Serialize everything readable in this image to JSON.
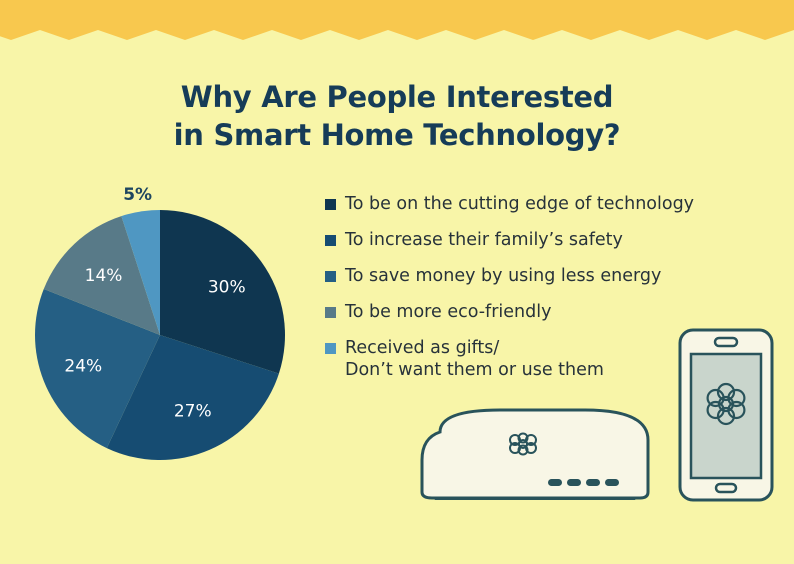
{
  "title": {
    "line1": "Why Are People Interested",
    "line2": "in Smart Home Technology?"
  },
  "colors": {
    "background": "#f8f5a8",
    "top_band": "#f8c84e",
    "title": "#163c58",
    "device_outline": "#29535b",
    "device_fill": "#f8f6e6"
  },
  "chart_data": {
    "type": "pie",
    "start_angle_deg": 0,
    "direction": "clockwise",
    "categories": [
      "To be on the cutting edge of technology",
      "To increase their family’s safety",
      "To save money by using less energy",
      "To be more eco-friendly",
      "Received as gifts/\nDon’t want them or use them"
    ],
    "values": [
      30,
      27,
      24,
      14,
      5
    ],
    "labels": [
      "30%",
      "27%",
      "24%",
      "14%",
      "5%"
    ],
    "colors": [
      "#0f3650",
      "#164c72",
      "#255f84",
      "#587a88",
      "#4f97c2"
    ],
    "label_colors": [
      "#ffffff",
      "#ffffff",
      "#ffffff",
      "#ffffff",
      "#1e4660"
    ],
    "legend_position": "right"
  },
  "devices": [
    "hub-device",
    "smartphone"
  ]
}
